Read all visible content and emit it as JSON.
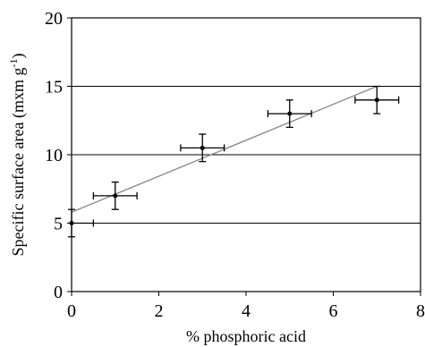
{
  "chart_data": {
    "type": "scatter",
    "xlabel": "% phosphoric acid",
    "ylabel": "Specific surface area (mxm g",
    "ylabel_sup": "-1",
    "ylabel_close": ")",
    "xlim": [
      0,
      8
    ],
    "ylim": [
      0,
      20
    ],
    "x_ticks": [
      0,
      2,
      4,
      6,
      8
    ],
    "y_ticks": [
      0,
      5,
      10,
      15,
      20
    ],
    "grid": "horizontal",
    "series": [
      {
        "x": [
          0,
          1,
          3,
          5,
          7
        ],
        "y": [
          5,
          7,
          10.5,
          13,
          14
        ],
        "x_err": [
          0.5,
          0.5,
          0.5,
          0.5,
          0.5
        ],
        "y_err": [
          1,
          1,
          1,
          1,
          1
        ]
      }
    ],
    "trendline": {
      "x": [
        0,
        7
      ],
      "y": [
        5.8,
        15
      ]
    },
    "colors": {
      "line": "#888888",
      "points": "#000000",
      "grid": "#000000"
    }
  }
}
